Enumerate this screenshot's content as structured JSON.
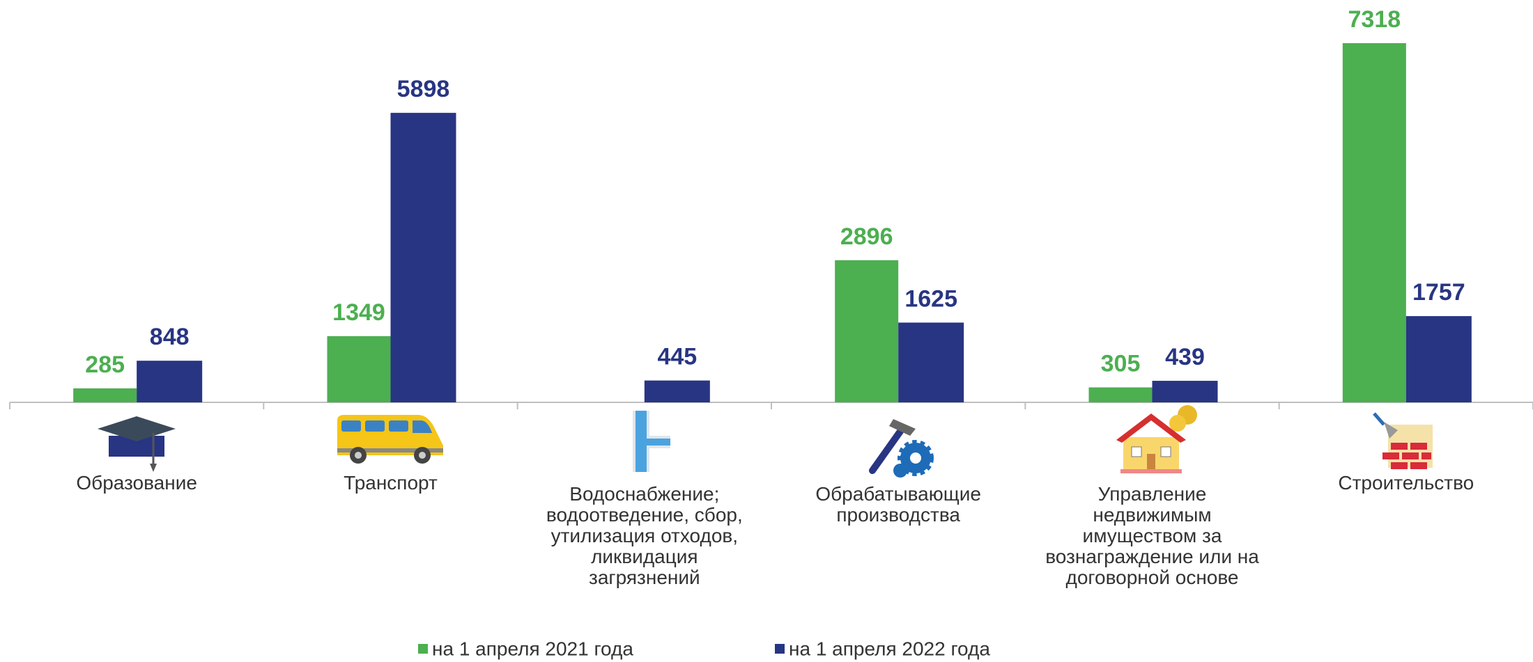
{
  "chart_data": {
    "type": "bar",
    "categories": [
      "Образование",
      "Транспорт",
      "Водоснабжение;\nводоотведение, сбор,\nутилизация отходов,\nликвидация\nзагрязнений",
      "Обрабатывающие\nпроизводства",
      "Управление\nнедвижимым\nимуществом за\nвознаграждение или на\nдоговорной основе",
      "Строительство"
    ],
    "series": [
      {
        "name": "на 1 апреля 2021 года",
        "color": "#4caf50",
        "values": [
          285,
          1349,
          null,
          2896,
          305,
          7318
        ]
      },
      {
        "name": "на 1 апреля 2022 года",
        "color": "#283583",
        "values": [
          848,
          5898,
          445,
          1625,
          439,
          1757
        ]
      }
    ],
    "legend": "bottom"
  }
}
